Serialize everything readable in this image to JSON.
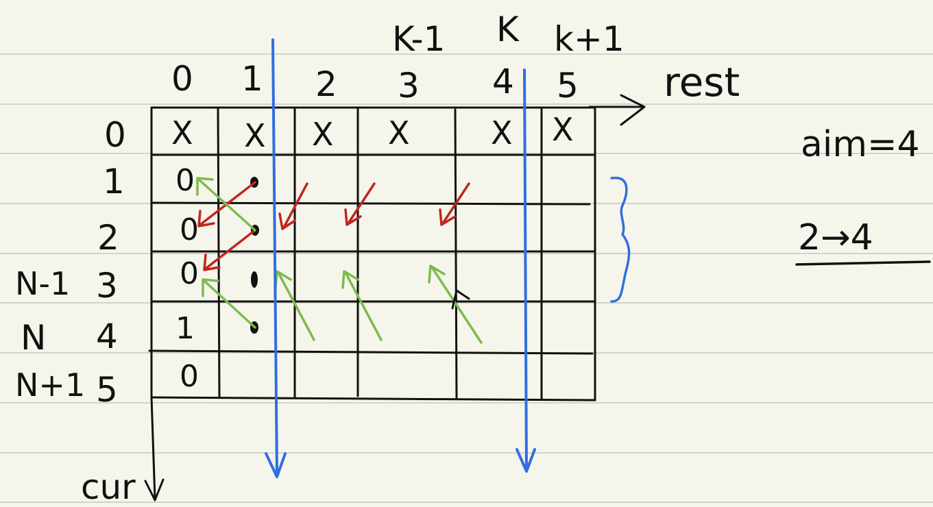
{
  "paper": {
    "background": "#f5f5ec",
    "ruled_line_color": "#d3d3cd"
  },
  "colors": {
    "ink": "#111111",
    "blue": "#2f6fe0",
    "red": "#c0261d",
    "green": "#7dbb4a"
  },
  "top_labels": {
    "k_minus_1": "K-1",
    "k": "K",
    "k_plus_1": "k+1"
  },
  "column_indices": [
    "0",
    "1",
    "2",
    "3",
    "4",
    "5"
  ],
  "row_indices": [
    "0",
    "1",
    "2",
    "3",
    "4",
    "5"
  ],
  "row_side_labels": {
    "n_minus_1": "N-1",
    "n": "N",
    "n_plus_1": "N+1"
  },
  "axis_labels": {
    "x_axis": "rest",
    "y_axis": "cur"
  },
  "cells": {
    "row0": [
      "X",
      "X",
      "X",
      "X",
      "X",
      "X"
    ],
    "col0": [
      "0",
      "0",
      "0",
      "1",
      "0"
    ]
  },
  "side_notes": {
    "aim": "aim=4",
    "range": "2→4"
  }
}
